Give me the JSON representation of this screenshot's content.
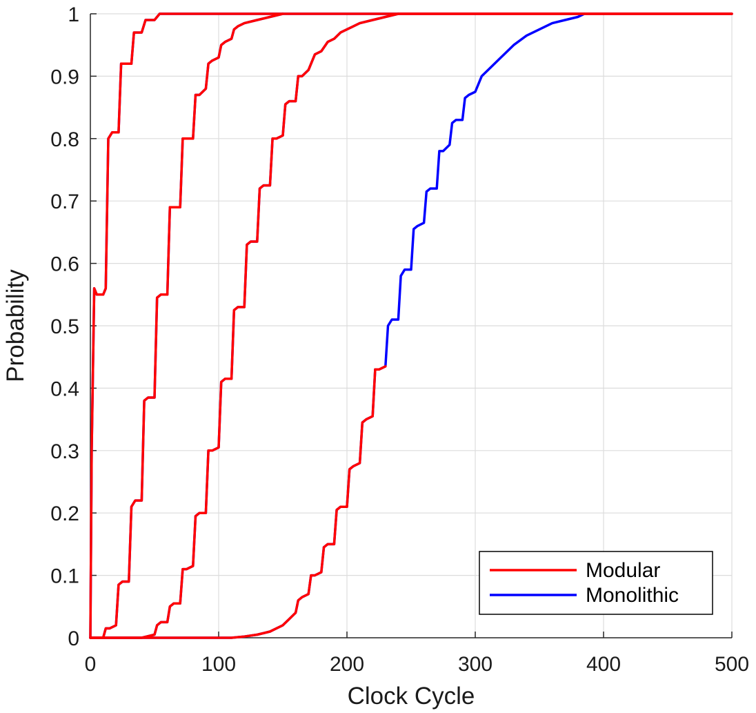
{
  "chart_data": {
    "type": "line",
    "xlabel": "Clock Cycle",
    "ylabel": "Probability",
    "xlim": [
      0,
      500
    ],
    "ylim": [
      0,
      1
    ],
    "xticks": [
      0,
      100,
      200,
      300,
      400,
      500
    ],
    "yticks": [
      0,
      0.1,
      0.2,
      0.3,
      0.4,
      0.5,
      0.6,
      0.7,
      0.8,
      0.9,
      1
    ],
    "xtick_labels": [
      "0",
      "100",
      "200",
      "300",
      "400",
      "500"
    ],
    "ytick_labels": [
      "0",
      "0.1",
      "0.2",
      "0.3",
      "0.4",
      "0.5",
      "0.6",
      "0.7",
      "0.8",
      "0.9",
      "1"
    ],
    "grid": true,
    "legend_position": "bottom-right",
    "colors": {
      "Modular": "#ff0000",
      "Monolithic": "#0000ff"
    },
    "legend": [
      "Modular",
      "Monolithic"
    ],
    "series": [
      {
        "name": "Monolithic",
        "color": "#0000ff",
        "curves": [
          {
            "x": [
              0,
              1,
              3,
              5,
              8,
              10,
              12,
              14,
              17,
              20,
              22,
              24,
              26,
              29,
              32,
              34,
              36,
              40,
              43,
              46,
              50,
              54,
              58,
              62,
              66,
              70,
              80,
              100,
              500
            ],
            "y": [
              0,
              0.3,
              0.56,
              0.55,
              0.55,
              0.55,
              0.56,
              0.8,
              0.81,
              0.81,
              0.81,
              0.92,
              0.92,
              0.92,
              0.92,
              0.97,
              0.97,
              0.97,
              0.99,
              0.99,
              0.99,
              1.0,
              1.0,
              1.0,
              1.0,
              1.0,
              1.0,
              1.0,
              1.0
            ]
          },
          {
            "x": [
              0,
              10,
              12,
              15,
              20,
              22,
              25,
              30,
              32,
              35,
              40,
              42,
              45,
              50,
              52,
              55,
              60,
              62,
              65,
              70,
              72,
              75,
              80,
              82,
              85,
              90,
              92,
              95,
              100,
              102,
              105,
              110,
              112,
              115,
              120,
              130,
              140,
              150
            ],
            "y": [
              0,
              0,
              0.015,
              0.015,
              0.02,
              0.085,
              0.09,
              0.09,
              0.21,
              0.22,
              0.22,
              0.38,
              0.385,
              0.385,
              0.545,
              0.55,
              0.55,
              0.69,
              0.69,
              0.69,
              0.8,
              0.8,
              0.8,
              0.87,
              0.87,
              0.88,
              0.92,
              0.925,
              0.93,
              0.95,
              0.955,
              0.96,
              0.975,
              0.98,
              0.985,
              0.99,
              0.995,
              1.0
            ]
          },
          {
            "x": [
              0,
              40,
              50,
              52,
              55,
              60,
              62,
              65,
              70,
              72,
              75,
              80,
              82,
              85,
              90,
              92,
              95,
              100,
              102,
              105,
              110,
              112,
              115,
              120,
              122,
              125,
              130,
              132,
              135,
              140,
              142,
              145,
              150,
              152,
              155,
              160,
              162,
              165,
              170,
              175,
              180,
              185,
              190,
              195,
              200,
              210,
              220,
              230,
              240
            ],
            "y": [
              0,
              0,
              0.005,
              0.02,
              0.025,
              0.025,
              0.05,
              0.055,
              0.055,
              0.11,
              0.11,
              0.115,
              0.195,
              0.2,
              0.2,
              0.3,
              0.3,
              0.305,
              0.41,
              0.415,
              0.415,
              0.525,
              0.53,
              0.53,
              0.63,
              0.635,
              0.635,
              0.72,
              0.725,
              0.725,
              0.8,
              0.8,
              0.805,
              0.855,
              0.86,
              0.86,
              0.9,
              0.9,
              0.91,
              0.935,
              0.94,
              0.955,
              0.96,
              0.97,
              0.975,
              0.985,
              0.99,
              0.995,
              1.0
            ]
          },
          {
            "x": [
              0,
              110,
              120,
              130,
              140,
              145,
              150,
              155,
              160,
              162,
              165,
              170,
              172,
              175,
              180,
              182,
              185,
              190,
              192,
              195,
              200,
              202,
              205,
              210,
              212,
              215,
              220,
              222,
              225,
              230,
              232,
              235,
              240,
              242,
              245,
              250,
              252,
              255,
              260,
              262,
              265,
              270,
              272,
              275,
              280,
              282,
              285,
              290,
              292,
              295,
              300,
              305,
              310,
              320,
              330,
              340,
              350,
              360,
              370,
              380,
              385
            ],
            "y": [
              0,
              0,
              0.002,
              0.005,
              0.01,
              0.015,
              0.02,
              0.03,
              0.04,
              0.06,
              0.065,
              0.07,
              0.1,
              0.1,
              0.105,
              0.145,
              0.15,
              0.15,
              0.205,
              0.21,
              0.21,
              0.27,
              0.275,
              0.28,
              0.345,
              0.35,
              0.355,
              0.43,
              0.43,
              0.435,
              0.5,
              0.51,
              0.51,
              0.58,
              0.59,
              0.59,
              0.655,
              0.66,
              0.665,
              0.715,
              0.72,
              0.72,
              0.78,
              0.78,
              0.79,
              0.825,
              0.83,
              0.83,
              0.865,
              0.87,
              0.875,
              0.9,
              0.91,
              0.93,
              0.95,
              0.965,
              0.975,
              0.985,
              0.99,
              0.995,
              1.0
            ]
          }
        ]
      },
      {
        "name": "Modular",
        "color": "#ff0000",
        "curves": [
          {
            "x": [
              0,
              1,
              3,
              5,
              8,
              10,
              12,
              14,
              17,
              20,
              22,
              24,
              26,
              29,
              32,
              34,
              36,
              40,
              43,
              46,
              50,
              54,
              58,
              62,
              66,
              70,
              80,
              100,
              500
            ],
            "y": [
              0,
              0.3,
              0.56,
              0.55,
              0.55,
              0.55,
              0.56,
              0.8,
              0.81,
              0.81,
              0.81,
              0.92,
              0.92,
              0.92,
              0.92,
              0.97,
              0.97,
              0.97,
              0.99,
              0.99,
              0.99,
              1.0,
              1.0,
              1.0,
              1.0,
              1.0,
              1.0,
              1.0,
              1.0
            ]
          },
          {
            "x": [
              0,
              10,
              12,
              15,
              20,
              22,
              25,
              30,
              32,
              35,
              40,
              42,
              45,
              50,
              52,
              55,
              60,
              62,
              65,
              70,
              72,
              75,
              80,
              82,
              85,
              90,
              92,
              95,
              100,
              102,
              105,
              110,
              112,
              115,
              120,
              130,
              140,
              150
            ],
            "y": [
              0,
              0,
              0.015,
              0.015,
              0.02,
              0.085,
              0.09,
              0.09,
              0.21,
              0.22,
              0.22,
              0.38,
              0.385,
              0.385,
              0.545,
              0.55,
              0.55,
              0.69,
              0.69,
              0.69,
              0.8,
              0.8,
              0.8,
              0.87,
              0.87,
              0.88,
              0.92,
              0.925,
              0.93,
              0.95,
              0.955,
              0.96,
              0.975,
              0.98,
              0.985,
              0.99,
              0.995,
              1.0
            ]
          },
          {
            "x": [
              0,
              40,
              50,
              52,
              55,
              60,
              62,
              65,
              70,
              72,
              75,
              80,
              82,
              85,
              90,
              92,
              95,
              100,
              102,
              105,
              110,
              112,
              115,
              120,
              122,
              125,
              130,
              132,
              135,
              140,
              142,
              145,
              150,
              152,
              155,
              160,
              162,
              165,
              170,
              175,
              180,
              185,
              190,
              195,
              200,
              210,
              220,
              230,
              240,
              500
            ],
            "y": [
              0,
              0,
              0.005,
              0.02,
              0.025,
              0.025,
              0.05,
              0.055,
              0.055,
              0.11,
              0.11,
              0.115,
              0.195,
              0.2,
              0.2,
              0.3,
              0.3,
              0.305,
              0.41,
              0.415,
              0.415,
              0.525,
              0.53,
              0.53,
              0.63,
              0.635,
              0.635,
              0.72,
              0.725,
              0.725,
              0.8,
              0.8,
              0.805,
              0.855,
              0.86,
              0.86,
              0.9,
              0.9,
              0.91,
              0.935,
              0.94,
              0.955,
              0.96,
              0.97,
              0.975,
              0.985,
              0.99,
              0.995,
              1.0,
              1.0
            ]
          },
          {
            "x": [
              0,
              110,
              120,
              130,
              140,
              145,
              150,
              155,
              160,
              162,
              165,
              170,
              172,
              175,
              180,
              182,
              185,
              190,
              192,
              195,
              200,
              202,
              205,
              210,
              212,
              215,
              220,
              222,
              225,
              230
            ],
            "y": [
              0,
              0,
              0.002,
              0.005,
              0.01,
              0.015,
              0.02,
              0.03,
              0.04,
              0.06,
              0.065,
              0.07,
              0.1,
              0.1,
              0.105,
              0.145,
              0.15,
              0.15,
              0.205,
              0.21,
              0.21,
              0.27,
              0.275,
              0.28,
              0.345,
              0.35,
              0.355,
              0.43,
              0.43,
              0.435
            ]
          }
        ]
      }
    ]
  }
}
